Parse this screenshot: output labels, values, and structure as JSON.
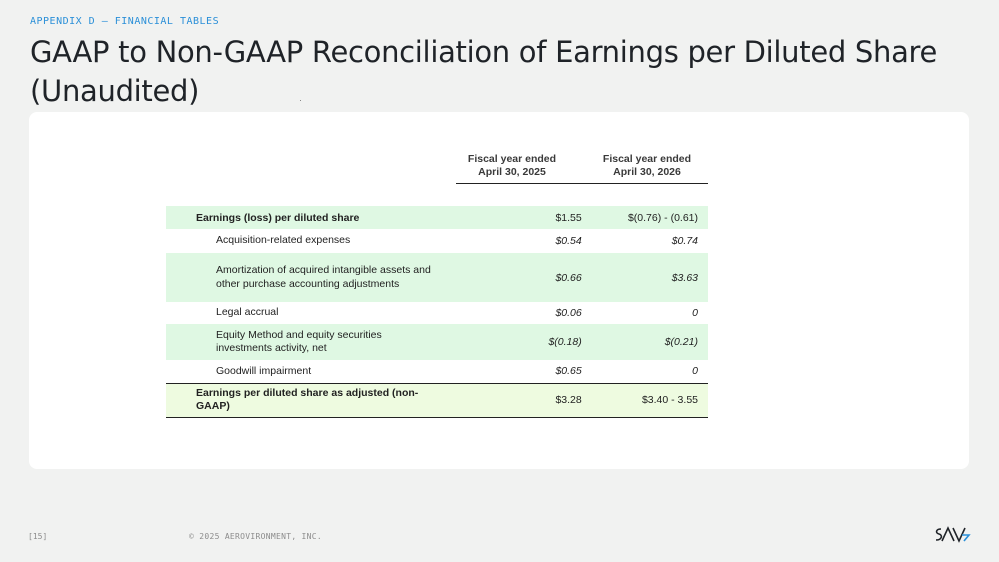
{
  "header": {
    "eyebrow": "APPENDIX D – FINANCIAL TABLES",
    "title": "GAAP to Non-GAAP Reconciliation of Earnings per Diluted Share (Unaudited)"
  },
  "table": {
    "columns": [
      {
        "line1": "Fiscal year ended",
        "line2": "April 30, 2025"
      },
      {
        "line1": "Fiscal year ended",
        "line2": "April 30, 2026"
      }
    ],
    "rows": [
      {
        "label": "Earnings (loss) per diluted share",
        "fy2025": "$1.55",
        "fy2026": "$(0.76) - (0.61)"
      },
      {
        "label": "Acquisition-related expenses",
        "fy2025": "$0.54",
        "fy2026": "$0.74"
      },
      {
        "label": "Amortization of acquired intangible assets and other purchase accounting adjustments",
        "fy2025": "$0.66",
        "fy2026": "$3.63"
      },
      {
        "label": "Legal accrual",
        "fy2025": "$0.06",
        "fy2026": "0"
      },
      {
        "label": "Equity Method and equity securities investments activity, net",
        "fy2025": "$(0.18)",
        "fy2026": "$(0.21)"
      },
      {
        "label": "Goodwill impairment",
        "fy2025": "$0.65",
        "fy2026": "0"
      },
      {
        "label": "Earnings per diluted share as adjusted (non-GAAP)",
        "fy2025": "$3.28",
        "fy2026": "$3.40 - 3.55"
      }
    ]
  },
  "footer": {
    "page": "[15]",
    "copyright": "© 2025 AEROVIRONMENT, INC.",
    "logo_icon": "av-logo-icon"
  },
  "colors": {
    "accent": "#2a8fd8",
    "row_shade": "#dff8e3",
    "total_shade": "#eefbe0"
  }
}
